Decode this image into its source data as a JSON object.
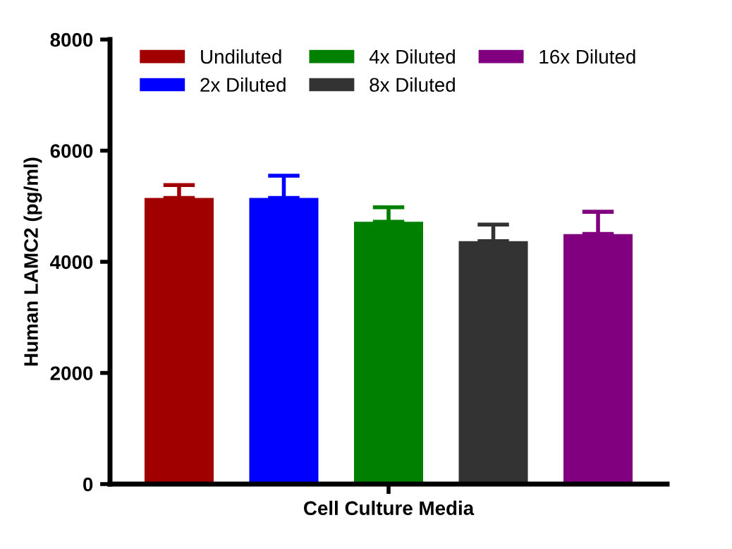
{
  "chart_data": {
    "type": "bar",
    "ylabel": "Human LAMC2 (pg/ml)",
    "categories": [
      "Cell Culture Media"
    ],
    "series": [
      {
        "name": "Undiluted",
        "color": "#a00000",
        "values": [
          5150
        ],
        "errors": [
          [
            5150,
            5380
          ]
        ]
      },
      {
        "name": "2x Diluted",
        "color": "#0000ff",
        "values": [
          5150
        ],
        "errors": [
          [
            5150,
            5550
          ]
        ]
      },
      {
        "name": "4x Diluted",
        "color": "#008000",
        "values": [
          4720
        ],
        "errors": [
          [
            4720,
            4980
          ]
        ]
      },
      {
        "name": "8x Diluted",
        "color": "#333333",
        "values": [
          4370
        ],
        "errors": [
          [
            4370,
            4670
          ]
        ]
      },
      {
        "name": "16x Diluted",
        "color": "#800080",
        "values": [
          4500
        ],
        "errors": [
          [
            4500,
            4900
          ]
        ]
      }
    ],
    "ylim": [
      0,
      8000
    ],
    "yticks": [
      0,
      2000,
      4000,
      6000,
      8000
    ],
    "grid": false,
    "legend": "top"
  }
}
